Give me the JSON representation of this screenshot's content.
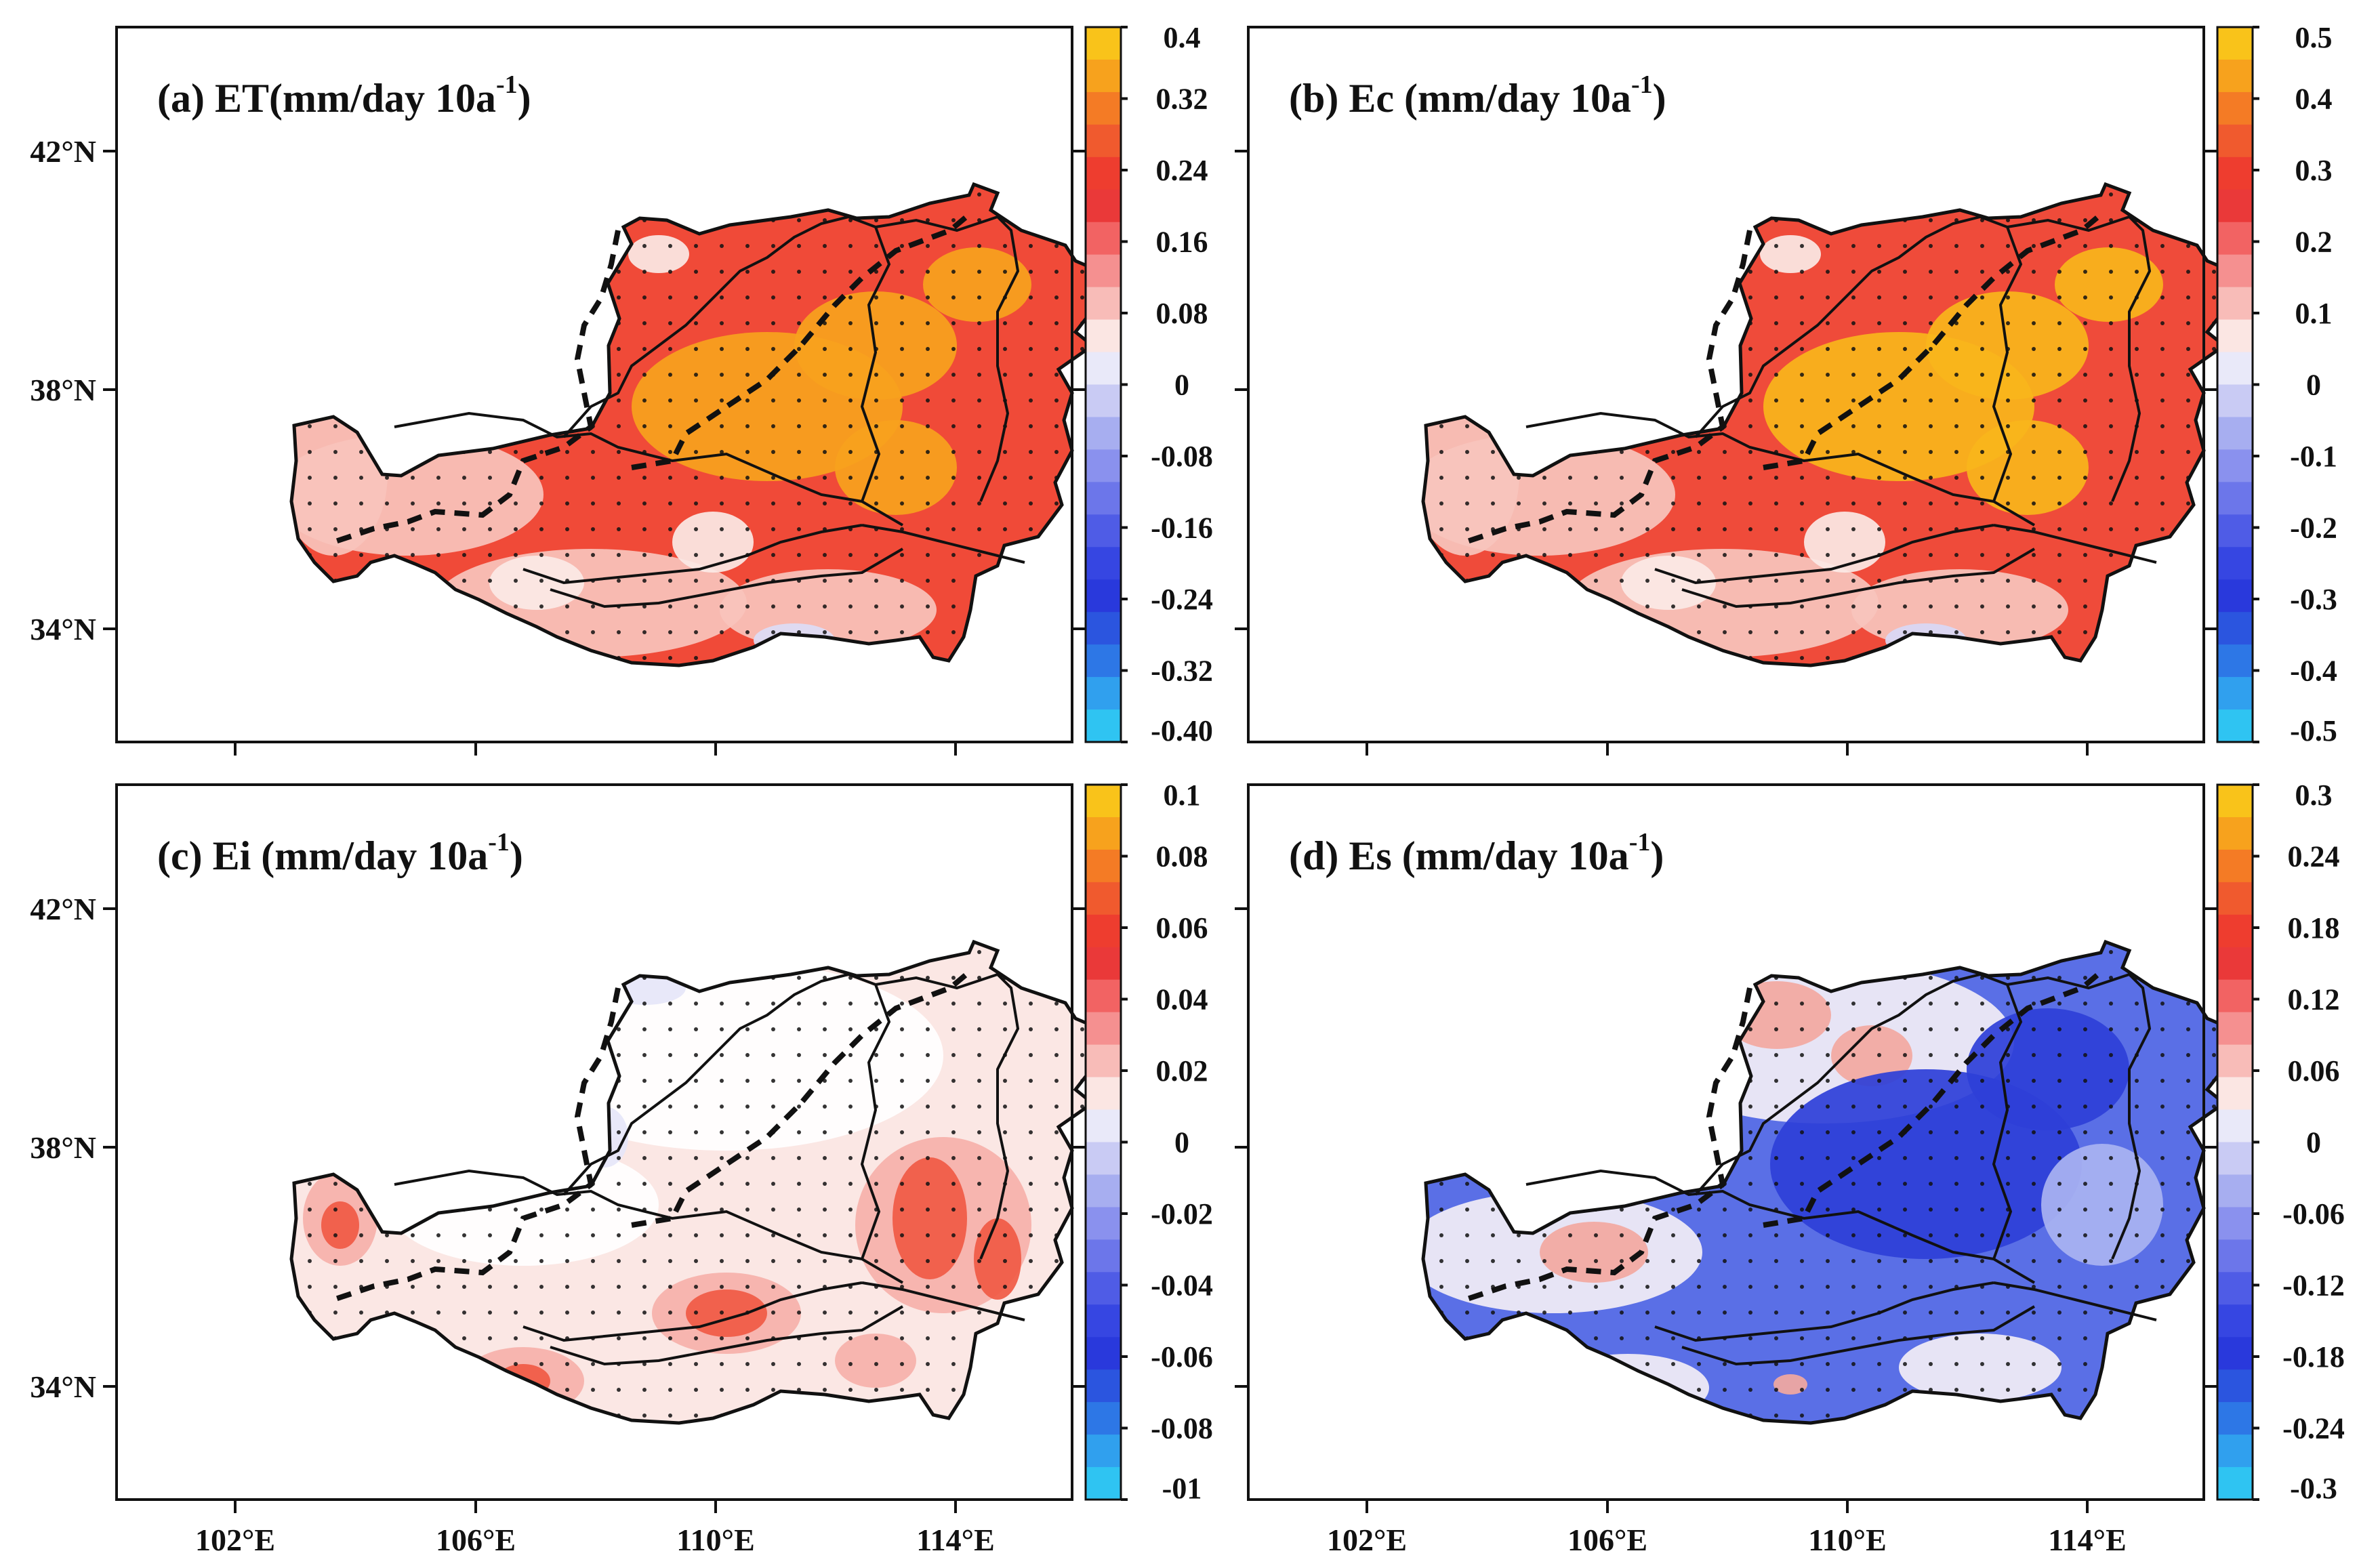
{
  "figure": {
    "panels": [
      {
        "id": "a",
        "title_main": "(a)  ET(mm/day 10a",
        "title_sup": "-1",
        "title_end": ")",
        "colorbar_labels": [
          "0.4",
          "0.32",
          "0.24",
          "0.16",
          "0.08",
          "0",
          "-0.08",
          "-0.16",
          "-0.24",
          "-0.32",
          "-0.40"
        ],
        "field": {
          "base": "#f04a38",
          "hot": "#f7a21d",
          "light": "#f8c3bc",
          "white": "#fbe9e6",
          "cool": "#dcdcf6"
        },
        "dominant": "positive",
        "intensity": 0.75
      },
      {
        "id": "b",
        "title_main": "(b)  Ec (mm/day 10a",
        "title_sup": "-1",
        "title_end": ")",
        "colorbar_labels": [
          "0.5",
          "0.4",
          "0.3",
          "0.2",
          "0.1",
          "0",
          "-0.1",
          "-0.2",
          "-0.3",
          "-0.4",
          "-0.5"
        ],
        "field": {
          "base": "#ef4b3a",
          "hot": "#f8b51b",
          "light": "#f7c4bd",
          "white": "#fbe9e6",
          "cool": "#d8d8f6"
        },
        "dominant": "positive",
        "intensity": 0.85
      },
      {
        "id": "c",
        "title_main": "(c)  Ei (mm/day 10a",
        "title_sup": "-1",
        "title_end": ")",
        "colorbar_labels": [
          "0.1",
          "0.08",
          "0.06",
          "0.04",
          "0.02",
          "0",
          "-0.02",
          "-0.04",
          "-0.06",
          "-0.08",
          "-01"
        ],
        "field": {
          "base": "#fbe7e4",
          "hot": "#f05a44",
          "light": "#f6b1aa",
          "white": "#ffffff",
          "cool": "#e6e6f8"
        },
        "dominant": "weak",
        "intensity": 0.3
      },
      {
        "id": "d",
        "title_main": "(d)  Es (mm/day 10a",
        "title_sup": "-1",
        "title_end": ")",
        "colorbar_labels": [
          "0.3",
          "0.24",
          "0.18",
          "0.12",
          "0.06",
          "0",
          "-0.06",
          "-0.12",
          "-0.18",
          "-0.24",
          "-0.3"
        ],
        "field": {
          "base": "#5a6fe6",
          "hot": "#2e3fd8",
          "light": "#a9b3f2",
          "white": "#f3eef6",
          "cool": "#f3a8a0"
        },
        "dominant": "negative",
        "intensity": 0.8
      }
    ],
    "lat_labels": [
      "42°N",
      "38°N",
      "34°N"
    ],
    "lon_labels": [
      "102°E",
      "106°E",
      "110°E",
      "114°E"
    ],
    "colorbar_colors": [
      "#f9c31a",
      "#f7a21d",
      "#f47b25",
      "#f05a2e",
      "#ee3d2f",
      "#ea3939",
      "#f26363",
      "#f59090",
      "#f8bcb8",
      "#fbe6e3",
      "#e9e9f9",
      "#c9cbf4",
      "#a7aef0",
      "#8a91ee",
      "#6c76ea",
      "#4f5ce6",
      "#3646e2",
      "#2939dc",
      "#2b55df",
      "#2d77e6",
      "#30a0ee",
      "#2fc4f2"
    ]
  }
}
